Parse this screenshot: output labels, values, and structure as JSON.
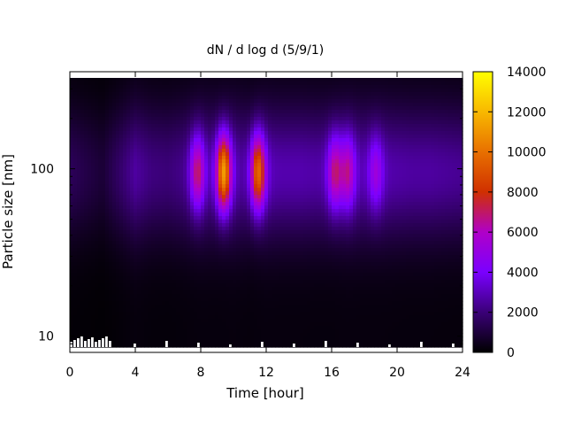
{
  "chart_data": {
    "type": "heatmap",
    "title": "dN / d log d (5/9/1)",
    "xlabel": "Time [hour]",
    "ylabel": "Particle size [nm]",
    "x_ticks": [
      0,
      4,
      8,
      12,
      16,
      20,
      24
    ],
    "x_tick_labels": [
      "0",
      "4",
      "8",
      "12",
      "16",
      "20",
      "24"
    ],
    "xlim": [
      0,
      24
    ],
    "y_scale": "log",
    "y_ticks": [
      10,
      100
    ],
    "y_tick_labels": [
      "10",
      "100"
    ],
    "ylim": [
      8,
      380
    ],
    "colorbar": {
      "range": [
        0,
        14000
      ],
      "ticks": [
        0,
        2000,
        4000,
        6000,
        8000,
        10000,
        12000,
        14000
      ],
      "tick_labels": [
        "0",
        "2000",
        "4000",
        "6000",
        "8000",
        "10000",
        "12000",
        "14000"
      ],
      "palette": [
        "#000000",
        "#3a0077",
        "#7a00ff",
        "#b000c8",
        "#d03000",
        "#e87000",
        "#f8b800",
        "#ffff00"
      ]
    },
    "size_mode": {
      "peak_nm": 95,
      "log_width": 0.27
    },
    "baseline": {
      "time_hr": [
        0,
        1,
        2,
        3,
        4,
        5,
        6,
        7,
        8,
        9,
        10,
        11,
        12,
        13,
        14,
        15,
        16,
        17,
        18,
        19,
        20,
        21,
        22,
        23,
        24
      ],
      "dNdlogd": [
        1500,
        1200,
        900,
        1700,
        2600,
        2100,
        2000,
        2300,
        2700,
        2600,
        2800,
        2500,
        2900,
        2800,
        2800,
        2700,
        2700,
        2900,
        2800,
        2800,
        2700,
        2600,
        2600,
        2500,
        2400
      ]
    },
    "events": [
      {
        "time_hr": 7.8,
        "peak_dNdlogd": 7000
      },
      {
        "time_hr": 9.4,
        "peak_dNdlogd": 11200
      },
      {
        "time_hr": 11.5,
        "peak_dNdlogd": 9800
      },
      {
        "time_hr": 16.2,
        "peak_dNdlogd": 6800
      },
      {
        "time_hr": 17.0,
        "peak_dNdlogd": 6500
      },
      {
        "time_hr": 18.7,
        "peak_dNdlogd": 5300
      }
    ],
    "grid": false,
    "legend": "colorbar-right"
  }
}
